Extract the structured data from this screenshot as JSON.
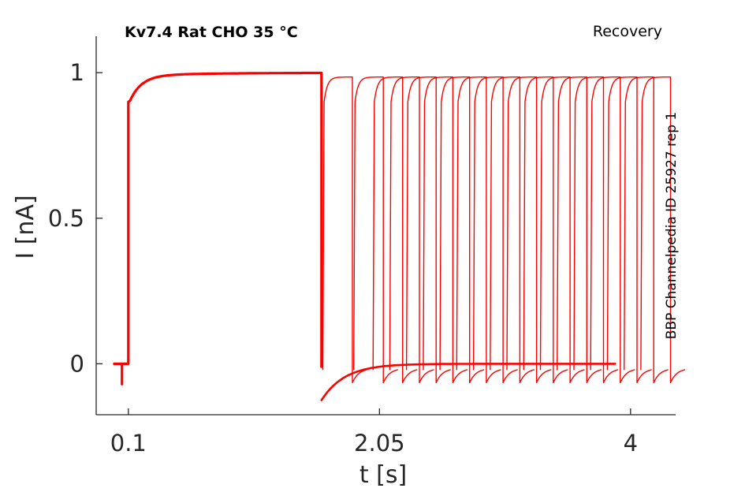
{
  "chart_data": {
    "type": "line",
    "title": "Kv7.4  Rat  CHO  35 °C",
    "protocol": "Recovery",
    "source": "BBP Channelpedia ID 25927 rep 1",
    "xlabel": "t [s]",
    "ylabel": "I [nA]",
    "x_ticks": [
      "0.1",
      "2.05",
      "4"
    ],
    "x_tick_values": [
      0.1,
      2.05,
      4.0
    ],
    "y_ticks": [
      "0",
      "0.5",
      "1"
    ],
    "y_tick_values": [
      0,
      0.5,
      1
    ],
    "xlim": [
      -0.15,
      4.35
    ],
    "ylim": [
      -0.175,
      1.125
    ],
    "grid": false,
    "legend": "none",
    "color": "#ff0000",
    "prepulse": {
      "baseline_start": -0.01,
      "onset": 0.1,
      "end": 1.6,
      "peak": 1.0,
      "artifact_dip": -0.07
    },
    "test_pulse": {
      "duration": 0.22,
      "peak": 0.985,
      "dip": -0.065
    },
    "recovery_tail": {
      "min": -0.125,
      "end": 3.88
    },
    "test_pulse_onsets": [
      1.62,
      1.86,
      2.01,
      2.14,
      2.27,
      2.4,
      2.53,
      2.66,
      2.79,
      2.92,
      3.05,
      3.18,
      3.31,
      3.44,
      3.57,
      3.7,
      3.83,
      3.96,
      4.09
    ]
  }
}
